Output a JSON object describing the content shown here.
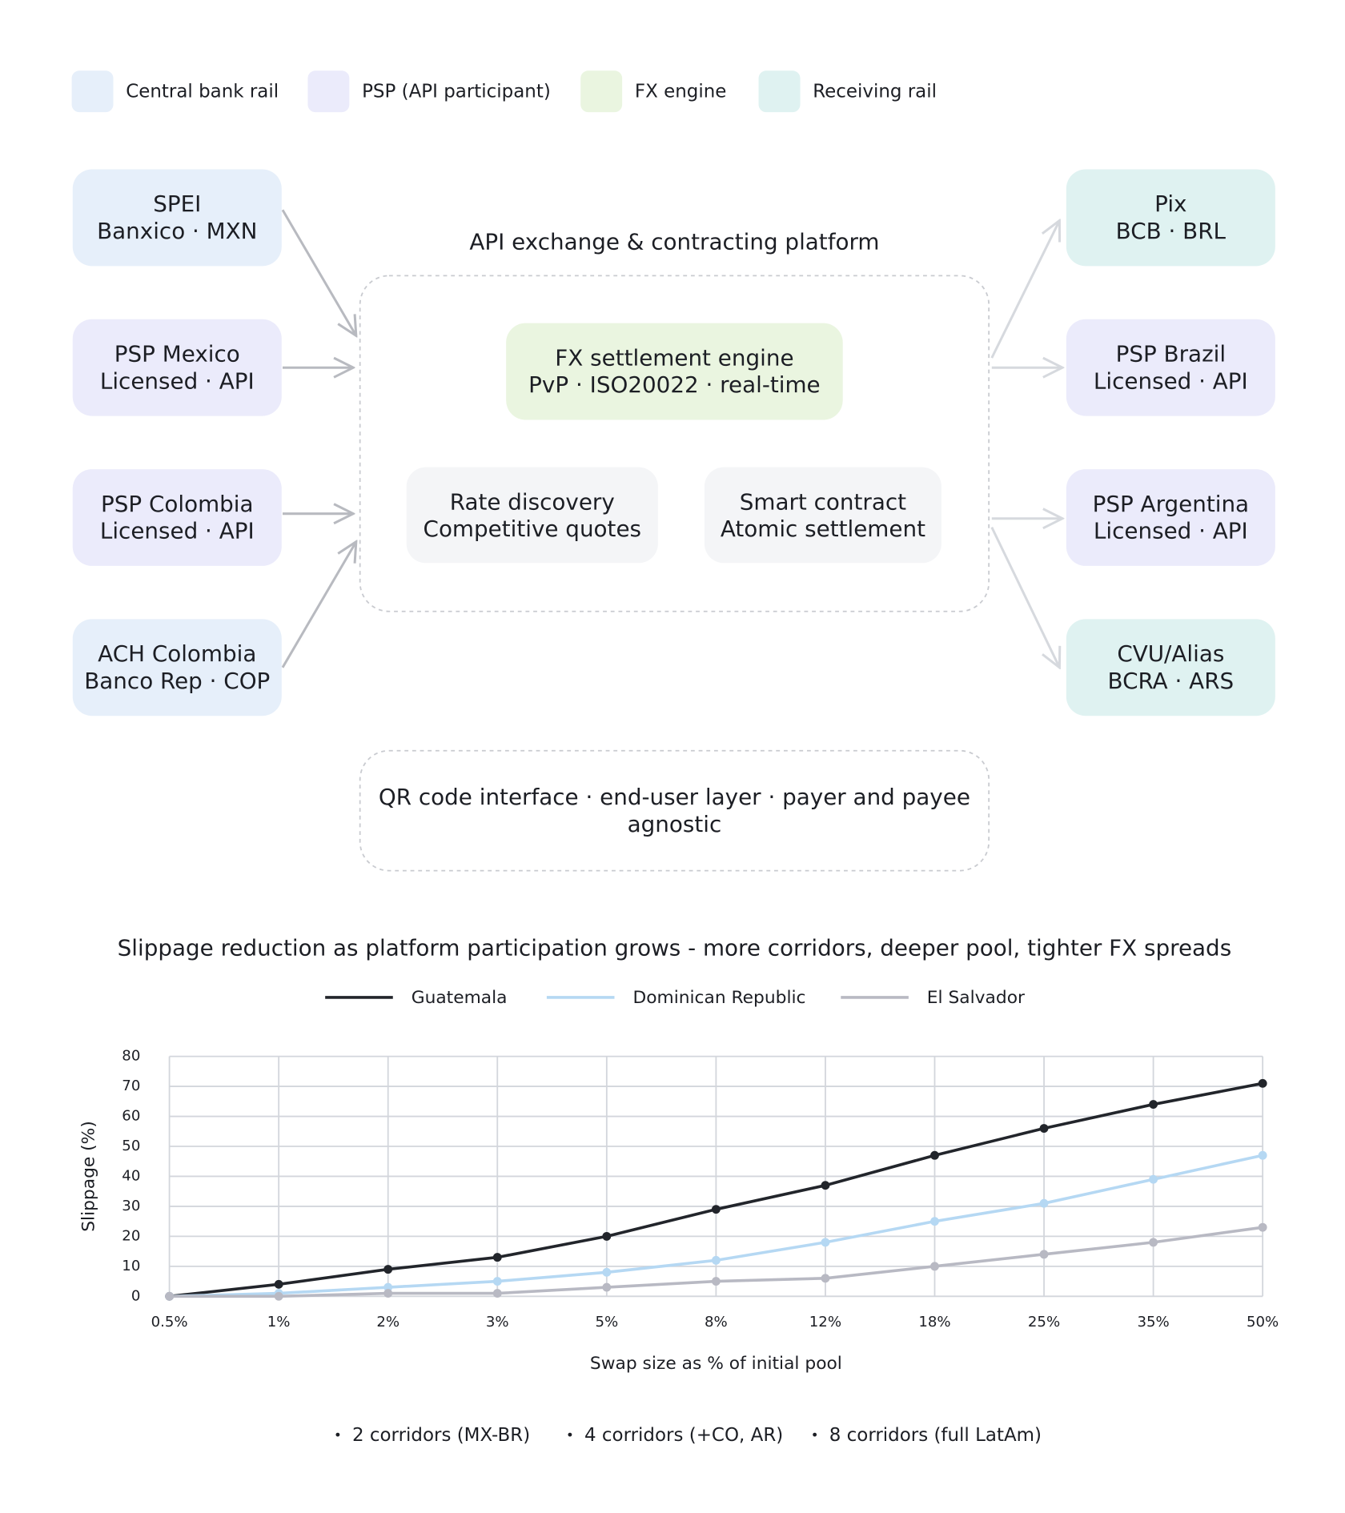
{
  "legend": [
    {
      "label": "Central bank rail",
      "color": "#e6effa"
    },
    {
      "label": "PSP (API participant)",
      "color": "#ebebfb"
    },
    {
      "label": "FX engine",
      "color": "#eaf5e0"
    },
    {
      "label": "Receiving rail",
      "color": "#dff2f1"
    }
  ],
  "nodes": [
    {
      "title": "SPEI",
      "subtitle": "Banxico · MXN",
      "color": "#e6effa"
    },
    {
      "title": "PSP Mexico",
      "subtitle": "Licensed · API",
      "color": "#ebebfb"
    },
    {
      "title": "PSP Colombia",
      "subtitle": "Licensed · API",
      "color": "#ebebfb"
    },
    {
      "title": "ACH Colombia",
      "subtitle": "Banco Rep · COP",
      "color": "#e6effa"
    },
    {
      "title": "Pix",
      "subtitle": "BCB · BRL",
      "color": "#dff2f1"
    },
    {
      "title": "PSP Brazil",
      "subtitle": "Licensed · API",
      "color": "#ebebfb"
    },
    {
      "title": "PSP Argentina",
      "subtitle": "Licensed · API",
      "color": "#ebebfb"
    },
    {
      "title": "CVU/Alias",
      "subtitle": "BCRA · ARS",
      "color": "#dff2f1"
    }
  ],
  "platform": {
    "title": "API exchange & contracting platform",
    "engine": {
      "title": "FX settlement engine",
      "subtitle": "PvP · ISO20022 · real-time",
      "color": "#eaf5e0"
    },
    "modules": [
      {
        "title": "Rate discovery",
        "subtitle": "Competitive quotes"
      },
      {
        "title": "Smart contract",
        "subtitle": "Atomic settlement"
      }
    ]
  },
  "interface": [
    "QR code interface · end-user layer · payer and payee",
    "agnostic"
  ],
  "chart_data": {
    "type": "line",
    "title": "Slippage reduction as platform participation grows - more corridors, deeper pool, tighter FX spreads",
    "x_label": "Swap size as % of initial pool",
    "y_label": "Slippage (%)",
    "categories": [
      "0.5%",
      "1%",
      "2%",
      "3%",
      "5%",
      "8%",
      "12%",
      "18%",
      "25%",
      "35%",
      "50%"
    ],
    "series": [
      {
        "name": "Guatemala",
        "color": "#22252b",
        "values": [
          0,
          4,
          9,
          13,
          20,
          29,
          37,
          47,
          56,
          64,
          71
        ]
      },
      {
        "name": "Dominican Republic",
        "color": "#b5d8f3",
        "values": [
          0,
          1,
          3,
          5,
          8,
          12,
          18,
          25,
          31,
          39,
          47
        ]
      },
      {
        "name": "El Salvador",
        "color": "#b8b9c3",
        "values": [
          0,
          0,
          1,
          1,
          3,
          5,
          6,
          10,
          14,
          18,
          23
        ]
      }
    ],
    "ylim": [
      0,
      80
    ],
    "yticks": [
      0,
      10,
      20,
      30,
      40,
      50,
      60,
      70,
      80
    ],
    "grid": true
  },
  "footnotes": [
    "2 corridors (MX-BR)",
    "4 corridors (+CO, AR)",
    "8 corridors (full LatAm)"
  ]
}
